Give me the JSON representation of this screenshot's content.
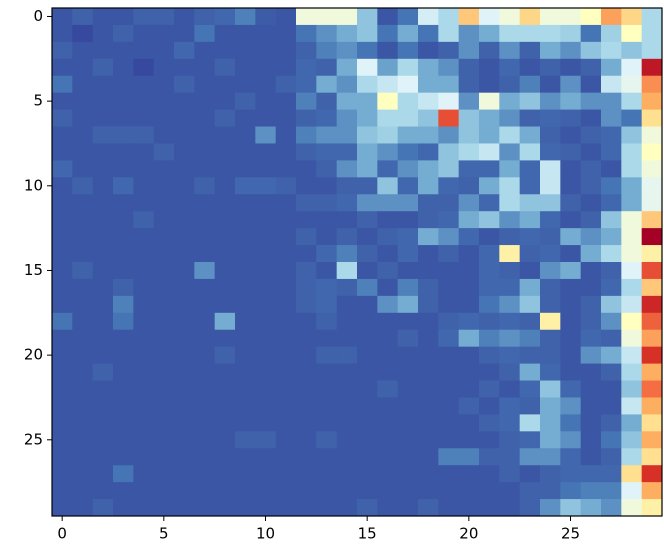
{
  "chart_data": {
    "type": "heatmap",
    "xlim": [
      -0.5,
      29.5
    ],
    "ylim": [
      29.5,
      -0.5
    ],
    "xticks": [
      0,
      5,
      10,
      15,
      20,
      25
    ],
    "yticks": [
      0,
      5,
      10,
      15,
      20,
      25
    ],
    "zlim": [
      0,
      1
    ],
    "colorscale": [
      "#313695",
      "#4575b4",
      "#74add1",
      "#abd9e9",
      "#e0f3f8",
      "#ffffbf",
      "#fee090",
      "#fdae61",
      "#f46d43",
      "#d73027",
      "#a50026"
    ],
    "z": [
      [
        0.05,
        0.07,
        0.05,
        0.05,
        0.07,
        0.07,
        0.05,
        0.07,
        0.08,
        0.12,
        0.06,
        0.05,
        0.45,
        0.45,
        0.45,
        0.25,
        0.05,
        0.1,
        0.38,
        0.3,
        0.65,
        0.4,
        0.45,
        0.62,
        0.45,
        0.45,
        0.5,
        0.72,
        0.62,
        0.3
      ],
      [
        0.05,
        0.03,
        0.05,
        0.07,
        0.05,
        0.05,
        0.05,
        0.1,
        0.05,
        0.05,
        0.05,
        0.05,
        0.1,
        0.15,
        0.2,
        0.25,
        0.1,
        0.2,
        0.1,
        0.3,
        0.15,
        0.2,
        0.3,
        0.3,
        0.3,
        0.28,
        0.1,
        0.28,
        0.5,
        0.3
      ],
      [
        0.07,
        0.05,
        0.05,
        0.05,
        0.05,
        0.05,
        0.08,
        0.05,
        0.05,
        0.05,
        0.05,
        0.05,
        0.07,
        0.12,
        0.15,
        0.1,
        0.05,
        0.1,
        0.05,
        0.07,
        0.15,
        0.07,
        0.15,
        0.07,
        0.2,
        0.15,
        0.25,
        0.3,
        0.25,
        0.3
      ],
      [
        0.05,
        0.05,
        0.07,
        0.05,
        0.03,
        0.05,
        0.05,
        0.05,
        0.07,
        0.05,
        0.05,
        0.05,
        0.08,
        0.07,
        0.2,
        0.4,
        0.18,
        0.3,
        0.2,
        0.15,
        0.07,
        0.05,
        0.08,
        0.05,
        0.07,
        0.05,
        0.07,
        0.2,
        0.4,
        0.95
      ],
      [
        0.1,
        0.05,
        0.05,
        0.05,
        0.05,
        0.05,
        0.07,
        0.05,
        0.05,
        0.05,
        0.05,
        0.07,
        0.08,
        0.2,
        0.15,
        0.3,
        0.35,
        0.4,
        0.2,
        0.2,
        0.07,
        0.05,
        0.07,
        0.12,
        0.05,
        0.15,
        0.05,
        0.35,
        0.42,
        0.75
      ],
      [
        0.05,
        0.05,
        0.05,
        0.05,
        0.05,
        0.05,
        0.05,
        0.05,
        0.05,
        0.07,
        0.05,
        0.05,
        0.12,
        0.07,
        0.2,
        0.2,
        0.5,
        0.3,
        0.35,
        0.4,
        0.15,
        0.45,
        0.2,
        0.25,
        0.15,
        0.2,
        0.15,
        0.15,
        0.3,
        0.7
      ],
      [
        0.07,
        0.05,
        0.05,
        0.05,
        0.05,
        0.05,
        0.05,
        0.05,
        0.07,
        0.05,
        0.05,
        0.05,
        0.07,
        0.08,
        0.15,
        0.2,
        0.3,
        0.3,
        0.25,
        0.85,
        0.25,
        0.2,
        0.15,
        0.07,
        0.08,
        0.07,
        0.05,
        0.15,
        0.1,
        0.6
      ],
      [
        0.05,
        0.05,
        0.07,
        0.07,
        0.07,
        0.05,
        0.05,
        0.05,
        0.05,
        0.05,
        0.15,
        0.05,
        0.12,
        0.15,
        0.15,
        0.25,
        0.28,
        0.2,
        0.2,
        0.15,
        0.25,
        0.2,
        0.3,
        0.2,
        0.07,
        0.05,
        0.07,
        0.08,
        0.25,
        0.45
      ],
      [
        0.05,
        0.05,
        0.05,
        0.05,
        0.05,
        0.07,
        0.05,
        0.05,
        0.05,
        0.05,
        0.05,
        0.05,
        0.07,
        0.08,
        0.08,
        0.2,
        0.15,
        0.1,
        0.08,
        0.25,
        0.3,
        0.35,
        0.15,
        0.3,
        0.08,
        0.07,
        0.05,
        0.08,
        0.3,
        0.5
      ],
      [
        0.08,
        0.05,
        0.05,
        0.05,
        0.05,
        0.05,
        0.05,
        0.05,
        0.05,
        0.05,
        0.05,
        0.05,
        0.05,
        0.07,
        0.15,
        0.2,
        0.08,
        0.15,
        0.2,
        0.25,
        0.08,
        0.08,
        0.2,
        0.08,
        0.35,
        0.05,
        0.07,
        0.05,
        0.3,
        0.45
      ],
      [
        0.05,
        0.07,
        0.05,
        0.08,
        0.05,
        0.05,
        0.05,
        0.07,
        0.05,
        0.08,
        0.08,
        0.07,
        0.05,
        0.05,
        0.07,
        0.07,
        0.25,
        0.08,
        0.2,
        0.08,
        0.07,
        0.2,
        0.3,
        0.08,
        0.35,
        0.05,
        0.07,
        0.1,
        0.2,
        0.42
      ],
      [
        0.05,
        0.05,
        0.05,
        0.05,
        0.05,
        0.05,
        0.05,
        0.05,
        0.05,
        0.05,
        0.05,
        0.05,
        0.07,
        0.07,
        0.08,
        0.15,
        0.15,
        0.15,
        0.07,
        0.07,
        0.15,
        0.08,
        0.3,
        0.25,
        0.25,
        0.07,
        0.05,
        0.08,
        0.2,
        0.42
      ],
      [
        0.05,
        0.05,
        0.05,
        0.05,
        0.07,
        0.05,
        0.05,
        0.05,
        0.05,
        0.05,
        0.05,
        0.05,
        0.05,
        0.05,
        0.05,
        0.07,
        0.05,
        0.05,
        0.07,
        0.08,
        0.2,
        0.25,
        0.15,
        0.2,
        0.08,
        0.05,
        0.07,
        0.25,
        0.45,
        0.65
      ],
      [
        0.05,
        0.05,
        0.05,
        0.05,
        0.05,
        0.05,
        0.05,
        0.05,
        0.05,
        0.05,
        0.05,
        0.05,
        0.07,
        0.05,
        0.07,
        0.05,
        0.07,
        0.08,
        0.2,
        0.15,
        0.08,
        0.05,
        0.07,
        0.08,
        0.07,
        0.2,
        0.15,
        0.2,
        0.45,
        1.0
      ],
      [
        0.05,
        0.05,
        0.05,
        0.05,
        0.05,
        0.05,
        0.05,
        0.05,
        0.05,
        0.05,
        0.05,
        0.05,
        0.05,
        0.08,
        0.12,
        0.07,
        0.05,
        0.08,
        0.05,
        0.07,
        0.05,
        0.08,
        0.55,
        0.07,
        0.08,
        0.05,
        0.2,
        0.3,
        0.45,
        0.55
      ],
      [
        0.05,
        0.07,
        0.05,
        0.05,
        0.05,
        0.05,
        0.05,
        0.15,
        0.05,
        0.05,
        0.05,
        0.05,
        0.07,
        0.05,
        0.3,
        0.05,
        0.07,
        0.05,
        0.05,
        0.05,
        0.05,
        0.08,
        0.07,
        0.05,
        0.15,
        0.2,
        0.05,
        0.07,
        0.4,
        0.85
      ],
      [
        0.05,
        0.05,
        0.05,
        0.07,
        0.05,
        0.05,
        0.05,
        0.05,
        0.05,
        0.05,
        0.05,
        0.05,
        0.07,
        0.08,
        0.07,
        0.12,
        0.05,
        0.12,
        0.07,
        0.05,
        0.05,
        0.08,
        0.08,
        0.2,
        0.07,
        0.05,
        0.05,
        0.08,
        0.3,
        0.65
      ],
      [
        0.05,
        0.05,
        0.05,
        0.12,
        0.05,
        0.05,
        0.05,
        0.05,
        0.05,
        0.05,
        0.05,
        0.05,
        0.07,
        0.08,
        0.05,
        0.05,
        0.15,
        0.2,
        0.07,
        0.05,
        0.05,
        0.1,
        0.15,
        0.25,
        0.07,
        0.05,
        0.07,
        0.25,
        0.35,
        0.92
      ],
      [
        0.1,
        0.05,
        0.05,
        0.1,
        0.05,
        0.05,
        0.05,
        0.05,
        0.2,
        0.05,
        0.05,
        0.05,
        0.05,
        0.07,
        0.05,
        0.05,
        0.05,
        0.05,
        0.05,
        0.07,
        0.08,
        0.07,
        0.08,
        0.07,
        0.55,
        0.05,
        0.07,
        0.15,
        0.5,
        0.82
      ],
      [
        0.05,
        0.05,
        0.05,
        0.05,
        0.05,
        0.05,
        0.05,
        0.05,
        0.05,
        0.05,
        0.05,
        0.05,
        0.05,
        0.05,
        0.05,
        0.05,
        0.05,
        0.07,
        0.05,
        0.08,
        0.2,
        0.12,
        0.15,
        0.12,
        0.07,
        0.05,
        0.08,
        0.07,
        0.45,
        0.72
      ],
      [
        0.05,
        0.05,
        0.05,
        0.05,
        0.05,
        0.05,
        0.05,
        0.05,
        0.07,
        0.05,
        0.05,
        0.05,
        0.05,
        0.07,
        0.07,
        0.05,
        0.05,
        0.05,
        0.05,
        0.05,
        0.05,
        0.07,
        0.08,
        0.07,
        0.07,
        0.05,
        0.15,
        0.2,
        0.35,
        0.9
      ],
      [
        0.05,
        0.05,
        0.07,
        0.05,
        0.05,
        0.05,
        0.05,
        0.05,
        0.05,
        0.05,
        0.05,
        0.05,
        0.05,
        0.05,
        0.05,
        0.05,
        0.05,
        0.05,
        0.05,
        0.05,
        0.05,
        0.05,
        0.07,
        0.2,
        0.08,
        0.05,
        0.05,
        0.07,
        0.3,
        0.7
      ],
      [
        0.05,
        0.05,
        0.05,
        0.05,
        0.05,
        0.05,
        0.05,
        0.05,
        0.05,
        0.05,
        0.05,
        0.05,
        0.05,
        0.05,
        0.05,
        0.05,
        0.07,
        0.05,
        0.05,
        0.05,
        0.05,
        0.07,
        0.05,
        0.08,
        0.25,
        0.08,
        0.05,
        0.05,
        0.25,
        0.8
      ],
      [
        0.05,
        0.05,
        0.05,
        0.05,
        0.05,
        0.05,
        0.05,
        0.05,
        0.05,
        0.05,
        0.05,
        0.05,
        0.05,
        0.05,
        0.05,
        0.05,
        0.05,
        0.05,
        0.05,
        0.05,
        0.07,
        0.05,
        0.08,
        0.07,
        0.2,
        0.15,
        0.05,
        0.05,
        0.35,
        0.7
      ],
      [
        0.05,
        0.05,
        0.05,
        0.05,
        0.05,
        0.05,
        0.05,
        0.05,
        0.05,
        0.05,
        0.05,
        0.05,
        0.05,
        0.05,
        0.05,
        0.05,
        0.05,
        0.05,
        0.05,
        0.05,
        0.05,
        0.07,
        0.08,
        0.3,
        0.2,
        0.1,
        0.05,
        0.07,
        0.2,
        0.6
      ],
      [
        0.05,
        0.05,
        0.05,
        0.05,
        0.05,
        0.05,
        0.05,
        0.05,
        0.05,
        0.07,
        0.07,
        0.05,
        0.05,
        0.07,
        0.05,
        0.05,
        0.05,
        0.05,
        0.05,
        0.05,
        0.05,
        0.05,
        0.07,
        0.08,
        0.2,
        0.15,
        0.05,
        0.1,
        0.25,
        0.7
      ],
      [
        0.05,
        0.05,
        0.05,
        0.05,
        0.05,
        0.05,
        0.05,
        0.05,
        0.05,
        0.05,
        0.05,
        0.05,
        0.05,
        0.05,
        0.05,
        0.05,
        0.05,
        0.05,
        0.05,
        0.12,
        0.12,
        0.07,
        0.07,
        0.15,
        0.15,
        0.08,
        0.05,
        0.07,
        0.3,
        0.6
      ],
      [
        0.05,
        0.05,
        0.05,
        0.1,
        0.05,
        0.05,
        0.05,
        0.05,
        0.05,
        0.05,
        0.05,
        0.05,
        0.05,
        0.05,
        0.05,
        0.05,
        0.05,
        0.05,
        0.05,
        0.05,
        0.05,
        0.05,
        0.07,
        0.05,
        0.07,
        0.08,
        0.08,
        0.08,
        0.6,
        0.9
      ],
      [
        0.05,
        0.05,
        0.05,
        0.05,
        0.05,
        0.05,
        0.05,
        0.05,
        0.05,
        0.05,
        0.05,
        0.05,
        0.05,
        0.05,
        0.05,
        0.05,
        0.05,
        0.05,
        0.05,
        0.05,
        0.05,
        0.05,
        0.05,
        0.07,
        0.07,
        0.1,
        0.12,
        0.12,
        0.4,
        0.7
      ],
      [
        0.05,
        0.05,
        0.07,
        0.05,
        0.05,
        0.05,
        0.05,
        0.05,
        0.05,
        0.05,
        0.05,
        0.05,
        0.05,
        0.05,
        0.05,
        0.07,
        0.05,
        0.05,
        0.07,
        0.05,
        0.05,
        0.05,
        0.05,
        0.07,
        0.15,
        0.25,
        0.2,
        0.15,
        0.45,
        0.55
      ]
    ]
  }
}
